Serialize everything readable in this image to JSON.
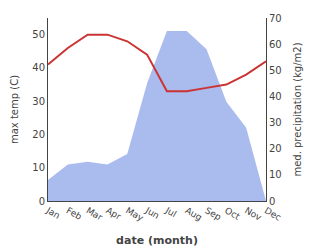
{
  "chart_data": {
    "type": "line",
    "xlabel": "date (month)",
    "ylabel": "max temp (C)",
    "y2label": "med. precipitation (kg/m2)",
    "categories": [
      "Jan",
      "Feb",
      "Mar",
      "Apr",
      "May",
      "Jun",
      "Jul",
      "Aug",
      "Sep",
      "Oct",
      "Nov",
      "Dec"
    ],
    "series": [
      {
        "type": "area",
        "axis": "y2",
        "color": "#aabbee",
        "values": [
          8,
          14,
          15,
          14,
          18,
          45,
          65,
          65,
          58,
          38,
          28,
          0
        ]
      },
      {
        "type": "line",
        "color": "#cc3333",
        "values": [
          41,
          46,
          50,
          50,
          48,
          44,
          33,
          33,
          34,
          35,
          38,
          42
        ]
      }
    ],
    "ylim": [
      0,
      55
    ],
    "yticks": [
      0,
      10,
      20,
      30,
      40,
      50
    ],
    "y2lim": [
      0,
      70
    ],
    "y2ticks": [
      0,
      10,
      20,
      30,
      40,
      50,
      60,
      70
    ],
    "grid": false
  }
}
